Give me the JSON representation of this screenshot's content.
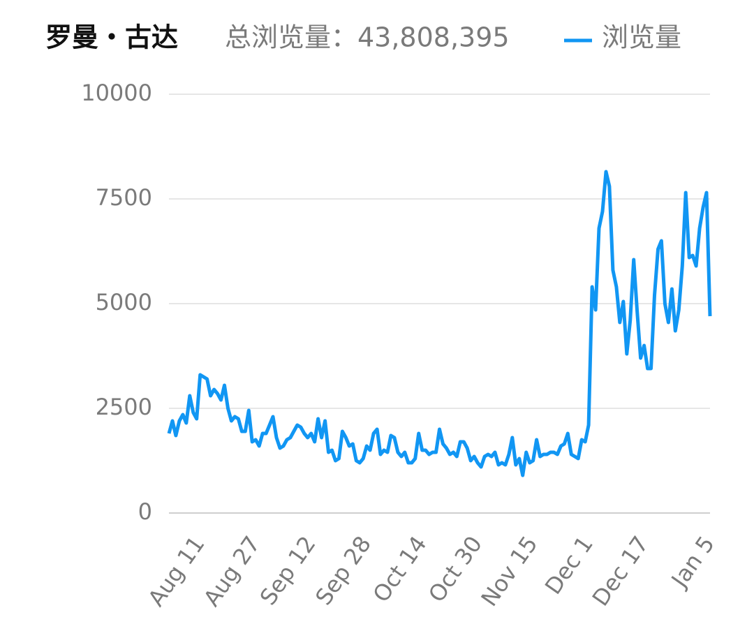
{
  "chart_data": {
    "type": "line",
    "title": "罗曼・古达",
    "subtitle": "总浏览量：43,808,395",
    "categories": [
      null,
      null,
      null,
      null,
      null,
      null,
      null,
      null,
      null,
      "Aug 11",
      null,
      null,
      null,
      null,
      null,
      null,
      null,
      null,
      null,
      null,
      null,
      null,
      null,
      null,
      null,
      "Aug 27",
      null,
      null,
      null,
      null,
      null,
      null,
      null,
      null,
      null,
      null,
      null,
      null,
      null,
      null,
      null,
      "Sep 12",
      null,
      null,
      null,
      null,
      null,
      null,
      null,
      null,
      null,
      null,
      null,
      null,
      null,
      null,
      null,
      "Sep 28",
      null,
      null,
      null,
      null,
      null,
      null,
      null,
      null,
      null,
      null,
      null,
      null,
      null,
      null,
      null,
      "Oct 14",
      null,
      null,
      null,
      null,
      null,
      null,
      null,
      null,
      null,
      null,
      null,
      null,
      null,
      null,
      null,
      "Oct 30",
      null,
      null,
      null,
      null,
      null,
      null,
      null,
      null,
      null,
      null,
      null,
      null,
      null,
      null,
      null,
      "Nov 15",
      null,
      null,
      null,
      null,
      null,
      null,
      null,
      null,
      null,
      null,
      null,
      null,
      null,
      null,
      null,
      "Dec 1",
      null,
      null,
      null,
      null,
      null,
      null,
      null,
      null,
      null,
      null,
      null,
      null,
      null,
      null,
      null,
      "Dec 17",
      null,
      null,
      null,
      null,
      null,
      null,
      null,
      null,
      null,
      null,
      null,
      null,
      null,
      null,
      null,
      null,
      null,
      null,
      "Jan 5"
    ],
    "series": [
      {
        "name": "浏览量",
        "color": "#1196f3",
        "values": [
          1900,
          2200,
          1850,
          2200,
          2350,
          2150,
          2800,
          2400,
          2250,
          3300,
          3250,
          3200,
          2800,
          2950,
          2850,
          2700,
          3050,
          2500,
          2200,
          2300,
          2250,
          1950,
          1950,
          2450,
          1700,
          1750,
          1600,
          1900,
          1900,
          2100,
          2300,
          1800,
          1550,
          1600,
          1750,
          1800,
          1950,
          2100,
          2050,
          1900,
          1800,
          1900,
          1700,
          2250,
          1800,
          2200,
          1450,
          1500,
          1250,
          1300,
          1950,
          1800,
          1600,
          1650,
          1250,
          1200,
          1300,
          1600,
          1500,
          1900,
          2000,
          1400,
          1500,
          1450,
          1850,
          1800,
          1450,
          1350,
          1450,
          1200,
          1200,
          1300,
          1900,
          1500,
          1500,
          1400,
          1450,
          1450,
          2000,
          1650,
          1550,
          1400,
          1450,
          1350,
          1700,
          1700,
          1550,
          1250,
          1350,
          1200,
          1100,
          1350,
          1400,
          1350,
          1450,
          1150,
          1200,
          1150,
          1400,
          1800,
          1150,
          1300,
          900,
          1450,
          1200,
          1250,
          1750,
          1350,
          1400,
          1400,
          1450,
          1450,
          1400,
          1600,
          1650,
          1900,
          1400,
          1350,
          1300,
          1750,
          1700,
          2100,
          5400,
          4850,
          6800,
          7200,
          8150,
          7800,
          5800,
          5400,
          4550,
          5050,
          3800,
          4600,
          6050,
          4800,
          3700,
          4000,
          3450,
          3450,
          5200,
          6300,
          6500,
          5000,
          4550,
          5350,
          4350,
          4850,
          5900,
          7650,
          6100,
          6150,
          5900,
          6800,
          7300,
          7650,
          4700
        ]
      }
    ],
    "ylim": [
      0,
      10000
    ],
    "yticks": [
      0,
      2500,
      5000,
      7500,
      10000
    ],
    "grid": true
  }
}
